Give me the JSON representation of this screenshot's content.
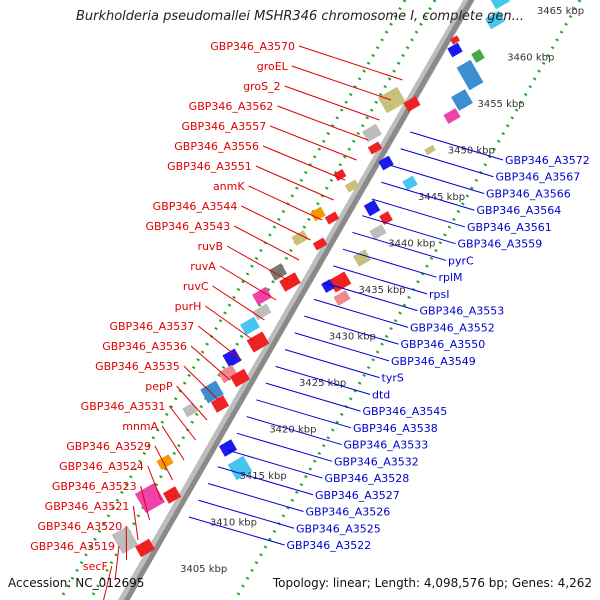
{
  "title": "Burkholderia pseudomallei MSHR346 chromosome I, complete gen...",
  "accession_text": "Accession: NC_012695",
  "topology_text": "Topology: linear; Length: 4,098,576 bp; Genes: 4,262",
  "colors": {
    "left_label": "#dd0000",
    "right_label": "#0000cc",
    "axis": "#8a8a8a",
    "dots": "#22aa22"
  },
  "kbp_ticks": [
    "3465 kbp",
    "3460 kbp",
    "3455 kbp",
    "3450 kbp",
    "3445 kbp",
    "3440 kbp",
    "3435 kbp",
    "3430 kbp",
    "3425 kbp",
    "3420 kbp",
    "3415 kbp",
    "3410 kbp",
    "3405 kbp"
  ],
  "left_labels": [
    "GBP346_A3570",
    "groEL",
    "groS_2",
    "GBP346_A3562",
    "GBP346_A3557",
    "GBP346_A3556",
    "GBP346_A3551",
    "anmK",
    "GBP346_A3544",
    "GBP346_A3543",
    "ruvB",
    "ruvA",
    "ruvC",
    "purH",
    "GBP346_A3537",
    "GBP346_A3536",
    "GBP346_A3535",
    "pepP",
    "GBP346_A3531",
    "mnmA",
    "GBP346_A3529",
    "GBP346_A3524",
    "GBP346_A3523",
    "GBP346_A3521",
    "GBP346_A3520",
    "GBP346_A3519",
    "secF"
  ],
  "right_labels": [
    "GBP346_A3572",
    "GBP346_A3567",
    "GBP346_A3566",
    "GBP346_A3564",
    "GBP346_A3561",
    "GBP346_A3559",
    "pyrC",
    "rplM",
    "rpsI",
    "GBP346_A3553",
    "GBP346_A3552",
    "GBP346_A3550",
    "GBP346_A3549",
    "tyrS",
    "dtd",
    "GBP346_A3545",
    "GBP346_A3538",
    "GBP346_A3533",
    "GBP346_A3532",
    "GBP346_A3528",
    "GBP346_A3527",
    "GBP346_A3526",
    "GBP346_A3525",
    "GBP346_A3522"
  ]
}
